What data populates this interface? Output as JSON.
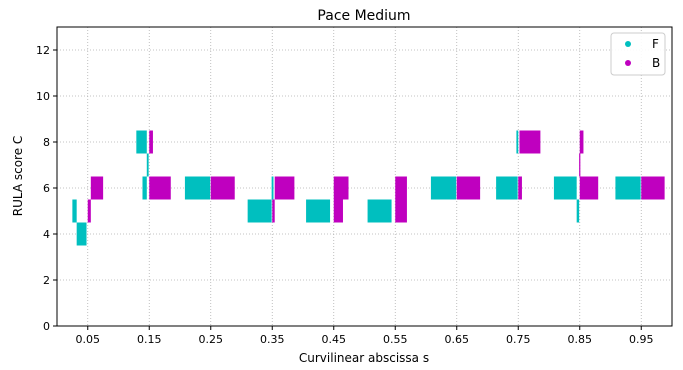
{
  "chart_data": {
    "type": "bar",
    "title": "Pace Medium",
    "xlabel": "Curvilinear abscissa s",
    "ylabel": "RULA score C",
    "xlim": [
      0.0,
      1.0
    ],
    "ylim": [
      0,
      13
    ],
    "xticks": [
      "0.05",
      "0.15",
      "0.25",
      "0.35",
      "0.45",
      "0.55",
      "0.65",
      "0.75",
      "0.85",
      "0.95"
    ],
    "yticks": [
      "0",
      "2",
      "4",
      "6",
      "8",
      "10",
      "12"
    ],
    "grid": true,
    "legend_position": "top-right",
    "series": [
      {
        "name": "F",
        "color": "#00BFBF",
        "bars": [
          {
            "x0": 0.025,
            "x1": 0.032,
            "value": 5
          },
          {
            "x0": 0.032,
            "x1": 0.048,
            "value": 4
          },
          {
            "x0": 0.129,
            "x1": 0.146,
            "value": 8
          },
          {
            "x0": 0.146,
            "x1": 0.149,
            "value": 7
          },
          {
            "x0": 0.139,
            "x1": 0.146,
            "value": 6
          },
          {
            "x0": 0.208,
            "x1": 0.249,
            "value": 6
          },
          {
            "x0": 0.31,
            "x1": 0.349,
            "value": 5
          },
          {
            "x0": 0.349,
            "x1": 0.352,
            "value": 6
          },
          {
            "x0": 0.405,
            "x1": 0.444,
            "value": 5
          },
          {
            "x0": 0.505,
            "x1": 0.544,
            "value": 5
          },
          {
            "x0": 0.608,
            "x1": 0.649,
            "value": 6
          },
          {
            "x0": 0.714,
            "x1": 0.749,
            "value": 6
          },
          {
            "x0": 0.747,
            "x1": 0.75,
            "value": 8
          },
          {
            "x0": 0.808,
            "x1": 0.845,
            "value": 6
          },
          {
            "x0": 0.845,
            "x1": 0.849,
            "value": 5
          },
          {
            "x0": 0.908,
            "x1": 0.949,
            "value": 6
          }
        ]
      },
      {
        "name": "B",
        "color": "#BF00BF",
        "bars": [
          {
            "x0": 0.05,
            "x1": 0.055,
            "value": 5
          },
          {
            "x0": 0.055,
            "x1": 0.075,
            "value": 6
          },
          {
            "x0": 0.15,
            "x1": 0.156,
            "value": 8
          },
          {
            "x0": 0.15,
            "x1": 0.185,
            "value": 6
          },
          {
            "x0": 0.25,
            "x1": 0.289,
            "value": 6
          },
          {
            "x0": 0.35,
            "x1": 0.354,
            "value": 5
          },
          {
            "x0": 0.354,
            "x1": 0.386,
            "value": 6
          },
          {
            "x0": 0.45,
            "x1": 0.465,
            "value": 5
          },
          {
            "x0": 0.45,
            "x1": 0.474,
            "value": 6
          },
          {
            "x0": 0.55,
            "x1": 0.569,
            "value": 5
          },
          {
            "x0": 0.55,
            "x1": 0.569,
            "value": 6
          },
          {
            "x0": 0.65,
            "x1": 0.688,
            "value": 6
          },
          {
            "x0": 0.75,
            "x1": 0.756,
            "value": 6
          },
          {
            "x0": 0.752,
            "x1": 0.786,
            "value": 8
          },
          {
            "x0": 0.85,
            "x1": 0.88,
            "value": 6
          },
          {
            "x0": 0.85,
            "x1": 0.856,
            "value": 8
          },
          {
            "x0": 0.849,
            "x1": 0.851,
            "value": 7
          },
          {
            "x0": 0.95,
            "x1": 0.988,
            "value": 6
          }
        ]
      }
    ]
  }
}
